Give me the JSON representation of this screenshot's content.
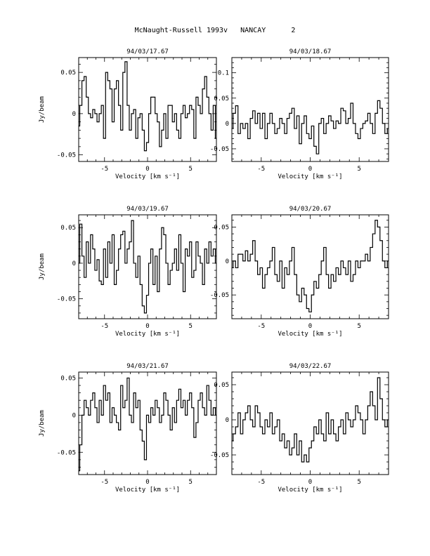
{
  "page": {
    "title": "McNaught-Russell 1993v   NANCAY      2"
  },
  "chart_data": [
    {
      "type": "line",
      "title": "94/03/17.67",
      "xlabel": "Velocity [km s⁻¹]",
      "ylabel": "Jy/beam",
      "xlim": [
        -8,
        8
      ],
      "ylim": [
        -0.058,
        0.068
      ],
      "xticks": [
        -5,
        0,
        5
      ],
      "yticks": [
        -0.05,
        0,
        0.05
      ],
      "ytick_labels": [
        "-0.05",
        "0",
        "0.05"
      ],
      "x": [
        -8.0,
        -7.75,
        -7.5,
        -7.25,
        -7.0,
        -6.75,
        -6.5,
        -6.25,
        -6.0,
        -5.75,
        -5.5,
        -5.25,
        -5.0,
        -4.75,
        -4.5,
        -4.25,
        -4.0,
        -3.75,
        -3.5,
        -3.25,
        -3.0,
        -2.75,
        -2.5,
        -2.25,
        -2.0,
        -1.75,
        -1.5,
        -1.25,
        -1.0,
        -0.75,
        -0.5,
        -0.25,
        0.0,
        0.25,
        0.5,
        0.75,
        1.0,
        1.25,
        1.5,
        1.75,
        2.0,
        2.25,
        2.5,
        2.75,
        3.0,
        3.25,
        3.5,
        3.75,
        4.0,
        4.25,
        4.5,
        4.75,
        5.0,
        5.25,
        5.5,
        5.75,
        6.0,
        6.25,
        6.5,
        6.75,
        7.0,
        7.25,
        7.5,
        7.75,
        8.0
      ],
      "y": [
        -0.015,
        0.01,
        0.04,
        0.045,
        0.02,
        0.0,
        -0.005,
        0.005,
        0.0,
        -0.01,
        0.0,
        0.01,
        -0.03,
        0.05,
        0.04,
        0.03,
        -0.01,
        0.03,
        0.04,
        0.01,
        -0.02,
        0.05,
        0.063,
        0.01,
        -0.02,
        0.0,
        0.005,
        -0.03,
        -0.005,
        0.0,
        -0.02,
        -0.045,
        -0.035,
        0.0,
        0.02,
        0.02,
        0.0,
        -0.01,
        -0.04,
        -0.02,
        0.0,
        -0.03,
        0.01,
        0.01,
        -0.01,
        0.0,
        -0.02,
        -0.03,
        0.0,
        0.01,
        -0.005,
        0.0,
        0.01,
        0.005,
        -0.03,
        0.02,
        0.01,
        0.0,
        0.03,
        0.045,
        0.02,
        0.0,
        -0.02,
        0.01,
        -0.03
      ]
    },
    {
      "type": "line",
      "title": "94/03/18.67",
      "xlabel": "Velocity [km s⁻¹]",
      "ylabel": "",
      "xlim": [
        -8,
        8
      ],
      "ylim": [
        -0.075,
        0.13
      ],
      "xticks": [
        -5,
        0,
        5
      ],
      "yticks": [
        -0.05,
        0,
        0.05,
        0.1
      ],
      "ytick_labels": [
        "-0.05",
        "0",
        "0.05",
        "0.1"
      ],
      "x": [
        -8.0,
        -7.75,
        -7.5,
        -7.25,
        -7.0,
        -6.75,
        -6.5,
        -6.25,
        -6.0,
        -5.75,
        -5.5,
        -5.25,
        -5.0,
        -4.75,
        -4.5,
        -4.25,
        -4.0,
        -3.75,
        -3.5,
        -3.25,
        -3.0,
        -2.75,
        -2.5,
        -2.25,
        -2.0,
        -1.75,
        -1.5,
        -1.25,
        -1.0,
        -0.75,
        -0.5,
        -0.25,
        0.0,
        0.25,
        0.5,
        0.75,
        1.0,
        1.25,
        1.5,
        1.75,
        2.0,
        2.25,
        2.5,
        2.75,
        3.0,
        3.25,
        3.5,
        3.75,
        4.0,
        4.25,
        4.5,
        4.75,
        5.0,
        5.25,
        5.5,
        5.75,
        6.0,
        6.25,
        6.5,
        6.75,
        7.0,
        7.25,
        7.5,
        7.75,
        8.0
      ],
      "y": [
        -0.01,
        0.02,
        0.035,
        -0.02,
        0.0,
        -0.01,
        0.0,
        -0.03,
        0.01,
        0.025,
        0.0,
        0.02,
        -0.01,
        0.02,
        -0.03,
        0.0,
        0.02,
        0.0,
        -0.02,
        -0.01,
        0.01,
        0.0,
        -0.02,
        0.01,
        0.02,
        0.03,
        -0.01,
        0.015,
        -0.04,
        0.0,
        0.015,
        -0.02,
        -0.03,
        -0.005,
        -0.045,
        -0.06,
        0.0,
        0.01,
        -0.02,
        0.0,
        0.015,
        0.005,
        -0.01,
        0.005,
        0.0,
        0.03,
        0.025,
        0.0,
        0.01,
        0.04,
        0.0,
        -0.02,
        -0.03,
        -0.01,
        0.0,
        0.005,
        0.02,
        0.0,
        -0.02,
        0.02,
        0.045,
        0.03,
        0.0,
        -0.02,
        -0.01
      ]
    },
    {
      "type": "line",
      "title": "94/03/19.67",
      "xlabel": "Velocity [km s⁻¹]",
      "ylabel": "Jy/beam",
      "xlim": [
        -8,
        8
      ],
      "ylim": [
        -0.078,
        0.068
      ],
      "xticks": [
        -5,
        0,
        5
      ],
      "yticks": [
        -0.05,
        0,
        0.05
      ],
      "ytick_labels": [
        "-0.05",
        "0",
        "0.05"
      ],
      "x": [
        -8.0,
        -7.75,
        -7.5,
        -7.25,
        -7.0,
        -6.75,
        -6.5,
        -6.25,
        -6.0,
        -5.75,
        -5.5,
        -5.25,
        -5.0,
        -4.75,
        -4.5,
        -4.25,
        -4.0,
        -3.75,
        -3.5,
        -3.25,
        -3.0,
        -2.75,
        -2.5,
        -2.25,
        -2.0,
        -1.75,
        -1.5,
        -1.25,
        -1.0,
        -0.75,
        -0.5,
        -0.25,
        0.0,
        0.25,
        0.5,
        0.75,
        1.0,
        1.25,
        1.5,
        1.75,
        2.0,
        2.25,
        2.5,
        2.75,
        3.0,
        3.25,
        3.5,
        3.75,
        4.0,
        4.25,
        4.5,
        4.75,
        5.0,
        5.25,
        5.5,
        5.75,
        6.0,
        6.25,
        6.5,
        6.75,
        7.0,
        7.25,
        7.5,
        7.75,
        8.0
      ],
      "y": [
        0.0,
        0.055,
        0.01,
        -0.02,
        0.03,
        0.0,
        0.04,
        0.02,
        -0.01,
        0.005,
        -0.025,
        -0.03,
        0.02,
        -0.02,
        0.03,
        0.0,
        0.04,
        -0.03,
        -0.01,
        0.02,
        0.04,
        0.045,
        0.0,
        0.02,
        0.03,
        0.06,
        0.0,
        -0.02,
        0.01,
        -0.03,
        -0.06,
        -0.07,
        -0.045,
        0.0,
        0.02,
        -0.03,
        0.01,
        -0.04,
        0.02,
        0.05,
        0.04,
        0.0,
        -0.03,
        -0.01,
        0.0,
        0.02,
        -0.01,
        0.04,
        0.0,
        -0.04,
        0.02,
        0.01,
        0.03,
        -0.02,
        -0.01,
        0.03,
        0.01,
        0.0,
        -0.03,
        0.02,
        0.0,
        0.03,
        0.01,
        0.02,
        0.0
      ]
    },
    {
      "type": "line",
      "title": "94/03/20.67",
      "xlabel": "Velocity [km s⁻¹]",
      "ylabel": "",
      "xlim": [
        -8,
        8
      ],
      "ylim": [
        -0.085,
        0.068
      ],
      "xticks": [
        -5,
        0,
        5
      ],
      "yticks": [
        -0.05,
        0,
        0.05
      ],
      "ytick_labels": [
        "-0.05",
        "0",
        "0.05"
      ],
      "x": [
        -8.0,
        -7.75,
        -7.5,
        -7.25,
        -7.0,
        -6.75,
        -6.5,
        -6.25,
        -6.0,
        -5.75,
        -5.5,
        -5.25,
        -5.0,
        -4.75,
        -4.5,
        -4.25,
        -4.0,
        -3.75,
        -3.5,
        -3.25,
        -3.0,
        -2.75,
        -2.5,
        -2.25,
        -2.0,
        -1.75,
        -1.5,
        -1.25,
        -1.0,
        -0.75,
        -0.5,
        -0.25,
        0.0,
        0.25,
        0.5,
        0.75,
        1.0,
        1.25,
        1.5,
        1.75,
        2.0,
        2.25,
        2.5,
        2.75,
        3.0,
        3.25,
        3.5,
        3.75,
        4.0,
        4.25,
        4.5,
        4.75,
        5.0,
        5.25,
        5.5,
        5.75,
        6.0,
        6.25,
        6.5,
        6.75,
        7.0,
        7.25,
        7.5,
        7.75,
        8.0
      ],
      "y": [
        -0.01,
        0.0,
        -0.01,
        0.01,
        0.01,
        0.0,
        0.015,
        0.0,
        0.01,
        0.03,
        0.0,
        -0.02,
        -0.01,
        -0.04,
        -0.02,
        -0.01,
        0.0,
        0.02,
        -0.02,
        -0.03,
        0.0,
        -0.04,
        -0.01,
        -0.02,
        0.0,
        0.02,
        -0.02,
        -0.05,
        -0.06,
        -0.04,
        -0.05,
        -0.07,
        -0.075,
        -0.05,
        -0.03,
        -0.04,
        -0.02,
        0.0,
        0.02,
        -0.02,
        -0.04,
        -0.02,
        -0.03,
        -0.01,
        -0.02,
        0.0,
        -0.01,
        -0.02,
        0.0,
        -0.03,
        -0.02,
        0.0,
        -0.01,
        0.0,
        0.0,
        0.01,
        0.0,
        0.02,
        0.04,
        0.06,
        0.05,
        0.03,
        0.0,
        -0.01,
        0.0
      ]
    },
    {
      "type": "line",
      "title": "94/03/21.67",
      "xlabel": "Velocity [km s⁻¹]",
      "ylabel": "Jy/beam",
      "xlim": [
        -8,
        8
      ],
      "ylim": [
        -0.08,
        0.058
      ],
      "xticks": [
        -5,
        0,
        5
      ],
      "yticks": [
        -0.05,
        0,
        0.05
      ],
      "ytick_labels": [
        "-0.05",
        "0",
        "0.05"
      ],
      "x": [
        -8.0,
        -7.75,
        -7.5,
        -7.25,
        -7.0,
        -6.75,
        -6.5,
        -6.25,
        -6.0,
        -5.75,
        -5.5,
        -5.25,
        -5.0,
        -4.75,
        -4.5,
        -4.25,
        -4.0,
        -3.75,
        -3.5,
        -3.25,
        -3.0,
        -2.75,
        -2.5,
        -2.25,
        -2.0,
        -1.75,
        -1.5,
        -1.25,
        -1.0,
        -0.75,
        -0.5,
        -0.25,
        0.0,
        0.25,
        0.5,
        0.75,
        1.0,
        1.25,
        1.5,
        1.75,
        2.0,
        2.25,
        2.5,
        2.75,
        3.0,
        3.25,
        3.5,
        3.75,
        4.0,
        4.25,
        4.5,
        4.75,
        5.0,
        5.25,
        5.5,
        5.75,
        6.0,
        6.25,
        6.5,
        6.75,
        7.0,
        7.25,
        7.5,
        7.75,
        8.0
      ],
      "y": [
        -0.075,
        -0.04,
        0.0,
        0.02,
        0.01,
        0.0,
        0.02,
        0.03,
        0.01,
        -0.01,
        0.02,
        0.0,
        0.04,
        0.02,
        0.03,
        -0.01,
        0.01,
        0.0,
        -0.01,
        -0.02,
        0.04,
        0.01,
        0.02,
        0.05,
        0.0,
        -0.01,
        0.03,
        0.01,
        0.02,
        -0.02,
        -0.035,
        -0.06,
        0.0,
        -0.01,
        0.01,
        0.0,
        0.02,
        0.01,
        -0.01,
        0.0,
        0.03,
        0.02,
        0.0,
        -0.02,
        0.01,
        -0.01,
        0.02,
        0.035,
        0.01,
        0.02,
        0.0,
        0.02,
        0.03,
        0.01,
        -0.03,
        -0.01,
        0.02,
        0.03,
        0.01,
        0.0,
        0.04,
        0.02,
        0.0,
        0.01,
        0.0
      ]
    },
    {
      "type": "line",
      "title": "94/03/22.67",
      "xlabel": "Velocity [km s⁻¹]",
      "ylabel": "",
      "xlim": [
        -8,
        8
      ],
      "ylim": [
        -0.078,
        0.068
      ],
      "xticks": [
        -5,
        0,
        5
      ],
      "yticks": [
        -0.05,
        0,
        0.05
      ],
      "ytick_labels": [
        "-0.05",
        "0",
        "0.05"
      ],
      "x": [
        -8.0,
        -7.75,
        -7.5,
        -7.25,
        -7.0,
        -6.75,
        -6.5,
        -6.25,
        -6.0,
        -5.75,
        -5.5,
        -5.25,
        -5.0,
        -4.75,
        -4.5,
        -4.25,
        -4.0,
        -3.75,
        -3.5,
        -3.25,
        -3.0,
        -2.75,
        -2.5,
        -2.25,
        -2.0,
        -1.75,
        -1.5,
        -1.25,
        -1.0,
        -0.75,
        -0.5,
        -0.25,
        0.0,
        0.25,
        0.5,
        0.75,
        1.0,
        1.25,
        1.5,
        1.75,
        2.0,
        2.25,
        2.5,
        2.75,
        3.0,
        3.25,
        3.5,
        3.75,
        4.0,
        4.25,
        4.5,
        4.75,
        5.0,
        5.25,
        5.5,
        5.75,
        6.0,
        6.25,
        6.5,
        6.75,
        7.0,
        7.25,
        7.5,
        7.75,
        8.0
      ],
      "y": [
        -0.03,
        -0.02,
        -0.01,
        0.01,
        -0.02,
        0.0,
        0.01,
        0.02,
        0.0,
        -0.01,
        0.02,
        0.01,
        -0.01,
        -0.02,
        0.0,
        -0.01,
        0.01,
        -0.02,
        -0.01,
        0.0,
        -0.03,
        -0.02,
        -0.04,
        -0.03,
        -0.05,
        -0.04,
        -0.02,
        -0.05,
        -0.03,
        -0.06,
        -0.05,
        -0.06,
        -0.04,
        -0.03,
        -0.01,
        -0.02,
        0.0,
        -0.02,
        -0.03,
        0.01,
        -0.02,
        0.0,
        -0.02,
        -0.03,
        -0.01,
        0.0,
        -0.02,
        0.01,
        0.0,
        -0.01,
        0.0,
        0.02,
        0.01,
        0.0,
        -0.02,
        0.0,
        0.02,
        0.04,
        0.02,
        0.0,
        0.06,
        0.03,
        0.0,
        -0.01,
        0.0
      ]
    }
  ]
}
